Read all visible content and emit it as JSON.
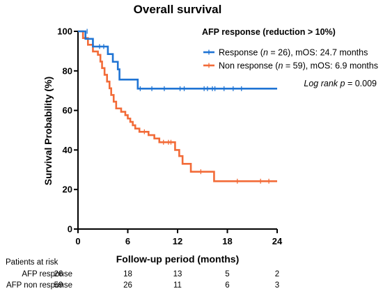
{
  "chart_data": {
    "type": "line",
    "title": "Overall survival",
    "xlabel": "Follow-up period (months)",
    "ylabel": "Survival Probability (%)",
    "xlim": [
      0,
      24
    ],
    "ylim": [
      0,
      100
    ],
    "x_ticks": [
      "0",
      "6",
      "12",
      "18",
      "24"
    ],
    "y_ticks": [
      "0",
      "20",
      "40",
      "60",
      "80",
      "100"
    ],
    "grid": false,
    "legend_title": "AFP response (reduction > 10%)",
    "legend_position": "top-right",
    "annotation": {
      "prefix": "Log rank ",
      "var": "p",
      "suffix": " = 0.009"
    },
    "series": [
      {
        "name": "Response (n = 26), mOS: 24.7 months",
        "legend": {
          "prefix": "Response (",
          "var": "n",
          "suffix": " = 26), mOS: 24.7 months"
        },
        "color": "#1f74d4",
        "steps": [
          [
            0,
            100
          ],
          [
            0.9,
            96.2
          ],
          [
            1.8,
            92.3
          ],
          [
            3.6,
            88.5
          ],
          [
            4.2,
            84.6
          ],
          [
            4.8,
            80.8
          ],
          [
            5.0,
            75.6
          ],
          [
            7.2,
            71.0
          ],
          [
            24,
            71.0
          ]
        ],
        "censored": [
          [
            1.1,
            100
          ],
          [
            2.6,
            92.3
          ],
          [
            3.1,
            92.3
          ],
          [
            7.5,
            71.0
          ],
          [
            8.9,
            71.0
          ],
          [
            10.4,
            71.0
          ],
          [
            12.3,
            71.0
          ],
          [
            12.8,
            71.0
          ],
          [
            15.2,
            71.0
          ],
          [
            15.6,
            71.0
          ],
          [
            16.2,
            71.0
          ],
          [
            16.5,
            71.0
          ],
          [
            17.6,
            71.0
          ],
          [
            18.7,
            71.0
          ],
          [
            19.7,
            71.0
          ]
        ]
      },
      {
        "name": "Non response (n = 59), mOS: 6.9 months",
        "legend": {
          "prefix": "Non response (",
          "var": "n",
          "suffix": " = 59), mOS: 6.9 months"
        },
        "color": "#f26b38",
        "steps": [
          [
            0,
            100
          ],
          [
            0.6,
            96.6
          ],
          [
            1.2,
            93.2
          ],
          [
            1.8,
            89.8
          ],
          [
            2.4,
            88.1
          ],
          [
            2.7,
            84.7
          ],
          [
            2.9,
            81.4
          ],
          [
            3.2,
            78.0
          ],
          [
            3.5,
            74.6
          ],
          [
            3.8,
            71.2
          ],
          [
            4.0,
            67.8
          ],
          [
            4.3,
            64.4
          ],
          [
            4.6,
            61.0
          ],
          [
            5.2,
            59.3
          ],
          [
            5.7,
            57.6
          ],
          [
            6.0,
            55.9
          ],
          [
            6.3,
            54.2
          ],
          [
            6.6,
            52.5
          ],
          [
            6.9,
            50.8
          ],
          [
            7.4,
            49.2
          ],
          [
            8.5,
            47.5
          ],
          [
            9.2,
            45.8
          ],
          [
            9.8,
            43.9
          ],
          [
            11.7,
            40.0
          ],
          [
            12.2,
            36.9
          ],
          [
            12.6,
            33.0
          ],
          [
            13.6,
            29.0
          ],
          [
            16.4,
            24.2
          ],
          [
            24,
            24.2
          ]
        ],
        "censored": [
          [
            8.0,
            49.2
          ],
          [
            10.3,
            43.9
          ],
          [
            10.9,
            43.9
          ],
          [
            11.2,
            43.9
          ],
          [
            14.8,
            29.0
          ],
          [
            19.2,
            24.2
          ],
          [
            22.0,
            24.2
          ],
          [
            23.0,
            24.2
          ]
        ]
      }
    ],
    "risk_table": {
      "header": "Patients at risk",
      "rows": [
        {
          "label": "AFP response",
          "values": [
            "26",
            "18",
            "13",
            "5",
            "2"
          ]
        },
        {
          "label": "AFP non response",
          "values": [
            "59",
            "26",
            "11",
            "6",
            "3"
          ]
        }
      ]
    }
  }
}
